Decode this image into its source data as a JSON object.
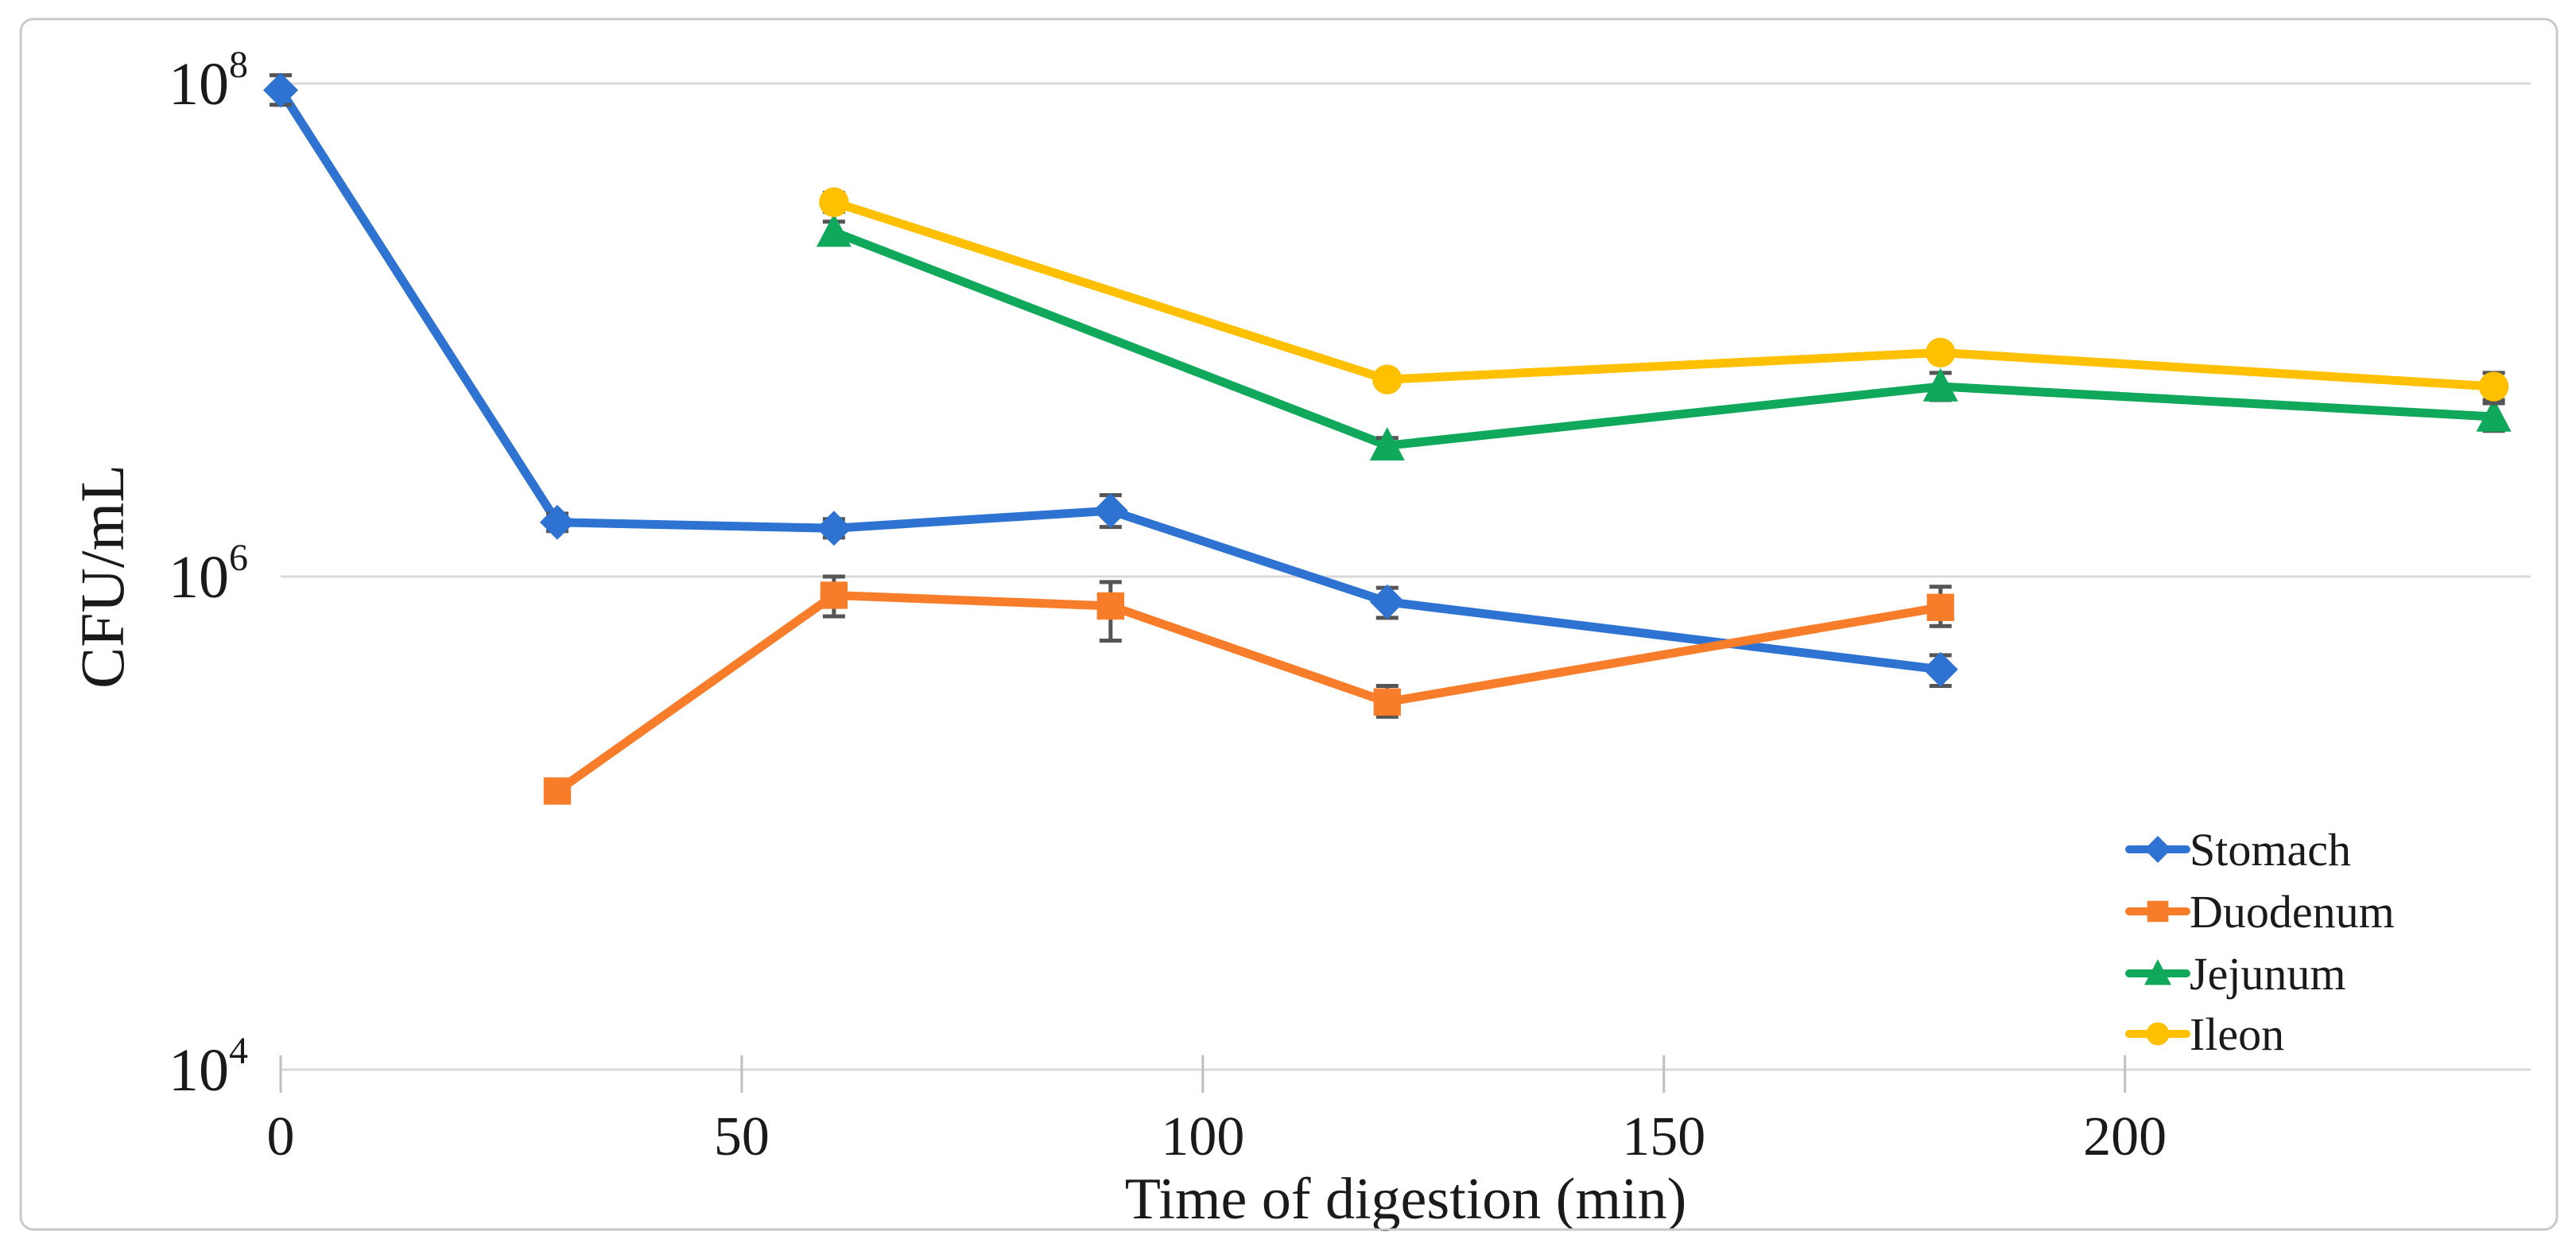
{
  "figure": {
    "background": "#ffffff",
    "frame_color": "#c9c9c9"
  },
  "chart_data": {
    "type": "line",
    "title": "",
    "xlabel": "Time of digestion (min)",
    "ylabel": "CFU/mL",
    "x_axis": {
      "min": 0,
      "max": 244,
      "ticks": [
        0,
        50,
        100,
        150,
        200
      ]
    },
    "y_axis": {
      "scale": "log10",
      "min_exp": 4,
      "max_exp": 8,
      "tick_exps": [
        8,
        6,
        4
      ],
      "base_label": "10"
    },
    "grid": "on",
    "grid_color": "#d9d9d9",
    "tick_color": "#bfbfbf",
    "error_bar_color": "#555555",
    "legend_position": "lower-right",
    "series": [
      {
        "name": "Stomach",
        "color": "#2e73d2",
        "marker": "diamond",
        "points": [
          {
            "t": 0,
            "v": 94000000.0,
            "ep": 14000000.0,
            "em": 12000000.0
          },
          {
            "t": 30,
            "v": 1660000.0,
            "ep": 140000.0,
            "em": 130000.0
          },
          {
            "t": 60,
            "v": 1570000.0,
            "ep": 140000.0,
            "em": 130000.0
          },
          {
            "t": 90,
            "v": 1850000.0,
            "ep": 290000.0,
            "em": 260000.0
          },
          {
            "t": 120,
            "v": 790000.0,
            "ep": 110000.0,
            "em": 110000.0
          },
          {
            "t": 180,
            "v": 420000.0,
            "ep": 60000.0,
            "em": 60000.0
          }
        ]
      },
      {
        "name": "Duodenum",
        "color": "#f87d2b",
        "marker": "square",
        "points": [
          {
            "t": 30,
            "v": 135000.0,
            "ep": 0,
            "em": 0
          },
          {
            "t": 60,
            "v": 840000.0,
            "ep": 160000.0,
            "em": 150000.0
          },
          {
            "t": 90,
            "v": 760000.0,
            "ep": 190000.0,
            "em": 210000.0
          },
          {
            "t": 120,
            "v": 310000.0,
            "ep": 50000.0,
            "em": 40000.0
          },
          {
            "t": 180,
            "v": 750000.0,
            "ep": 160000.0,
            "em": 120000.0
          }
        ]
      },
      {
        "name": "Jejunum",
        "color": "#10a85a",
        "marker": "triangle",
        "points": [
          {
            "t": 60,
            "v": 25000000.0,
            "ep": 2500000.0,
            "em": 2300000.0
          },
          {
            "t": 120,
            "v": 3400000.0,
            "ep": 250000.0,
            "em": 230000.0
          },
          {
            "t": 180,
            "v": 5900000.0,
            "ep": 800000.0,
            "em": 700000.0
          },
          {
            "t": 240,
            "v": 4450000.0,
            "ep": 750000.0,
            "em": 550000.0
          }
        ]
      },
      {
        "name": "Ileon",
        "color": "#ffc000",
        "marker": "circle",
        "points": [
          {
            "t": 60,
            "v": 33000000.0,
            "ep": 3000000.0,
            "em": 2800000.0
          },
          {
            "t": 120,
            "v": 6300000.0,
            "ep": 400000.0,
            "em": 350000.0
          },
          {
            "t": 180,
            "v": 8100000.0,
            "ep": 600000.0,
            "em": 550000.0
          },
          {
            "t": 240,
            "v": 5900000.0,
            "ep": 800000.0,
            "em": 850000.0
          }
        ]
      }
    ]
  }
}
